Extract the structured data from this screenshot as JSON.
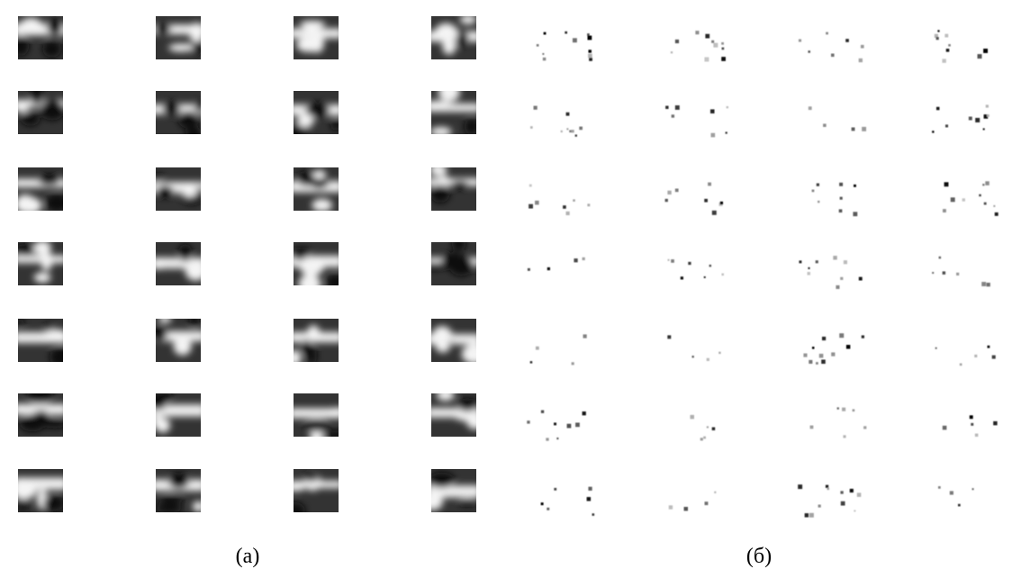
{
  "captions": {
    "left": "(а)",
    "right": "(б)"
  }
}
